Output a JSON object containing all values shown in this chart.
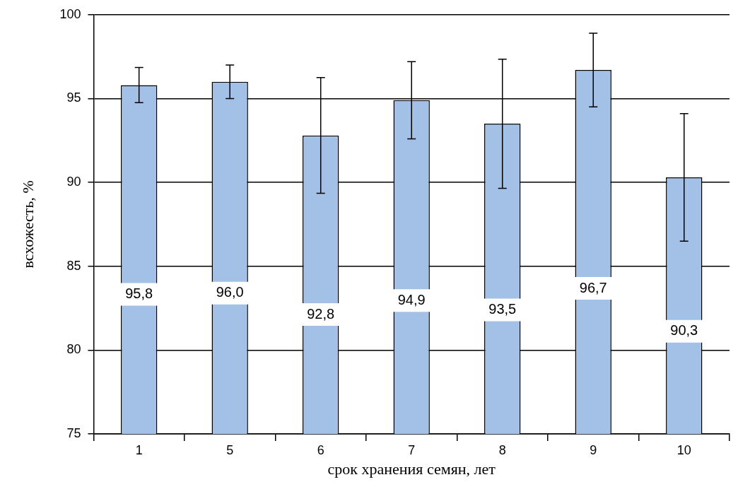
{
  "chart_data": {
    "type": "bar",
    "xlabel": "срок хранения семян, лет",
    "ylabel": "всхожесть, %",
    "categories": [
      "1",
      "5",
      "6",
      "7",
      "8",
      "9",
      "10"
    ],
    "values": [
      95.8,
      96.0,
      92.8,
      94.9,
      93.5,
      96.7,
      90.3
    ],
    "errors": [
      1.05,
      1.0,
      3.45,
      2.3,
      3.85,
      2.2,
      3.8
    ],
    "value_labels": [
      "95,8",
      "96,0",
      "92,8",
      "94,9",
      "93,5",
      "96,7",
      "90,3"
    ],
    "color": "#a3c0e6",
    "ylim": [
      75,
      100
    ],
    "yticks": [
      75,
      80,
      85,
      90,
      95,
      100
    ],
    "grid": "y",
    "legend": false
  }
}
